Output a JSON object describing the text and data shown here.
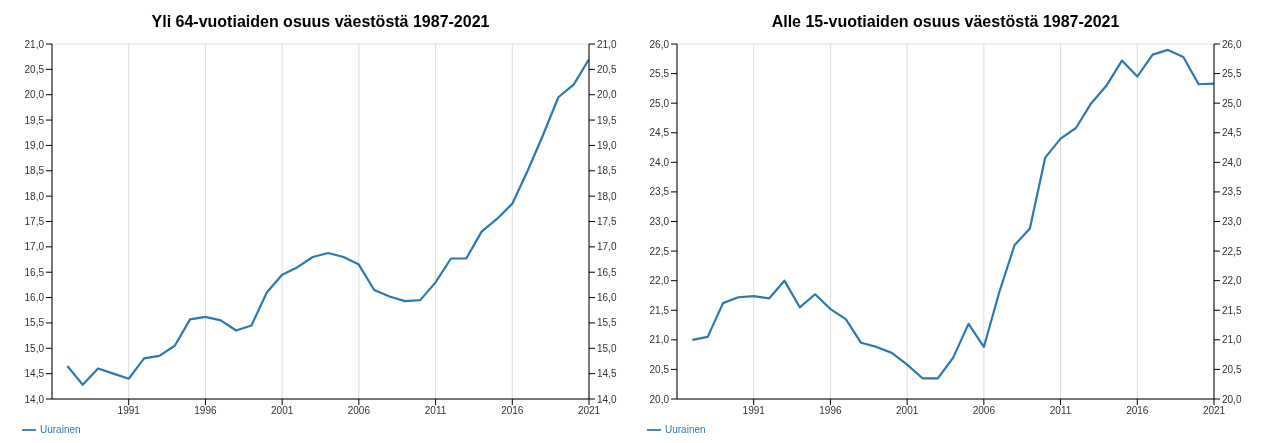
{
  "chart_data": [
    {
      "type": "line",
      "title": "Yli 64-vuotiaiden osuus väestöstä 1987-2021",
      "x": [
        1987,
        1988,
        1989,
        1990,
        1991,
        1992,
        1993,
        1994,
        1995,
        1996,
        1997,
        1998,
        1999,
        2000,
        2001,
        2002,
        2003,
        2004,
        2005,
        2006,
        2007,
        2008,
        2009,
        2010,
        2011,
        2012,
        2013,
        2014,
        2015,
        2016,
        2017,
        2018,
        2019,
        2020,
        2021
      ],
      "series": [
        {
          "name": "Uurainen",
          "color": "#2a7ab0",
          "values": [
            14.65,
            14.28,
            14.6,
            14.5,
            14.4,
            14.8,
            14.85,
            15.05,
            15.57,
            15.62,
            15.55,
            15.35,
            15.45,
            16.1,
            16.45,
            16.6,
            16.8,
            16.88,
            16.8,
            16.65,
            16.15,
            16.02,
            15.93,
            15.95,
            16.3,
            16.77,
            16.77,
            17.3,
            17.55,
            17.85,
            18.5,
            19.2,
            19.95,
            20.2,
            20.7
          ]
        }
      ],
      "xlim": [
        1986,
        2021
      ],
      "xticks": [
        1991,
        1996,
        2001,
        2006,
        2011,
        2016,
        2021
      ],
      "ylim": [
        14,
        21
      ],
      "yticks": [
        {
          "value": 14,
          "label": "14,0"
        },
        {
          "value": 14.5,
          "label": "14,5"
        },
        {
          "value": 15,
          "label": "15,0"
        },
        {
          "value": 15.5,
          "label": "15,5"
        },
        {
          "value": 16,
          "label": "16,0"
        },
        {
          "value": 16.5,
          "label": "16,5"
        },
        {
          "value": 17,
          "label": "17,0"
        },
        {
          "value": 17.5,
          "label": "17,5"
        },
        {
          "value": 18,
          "label": "18,0"
        },
        {
          "value": 18.5,
          "label": "18,5"
        },
        {
          "value": 19,
          "label": "19,0"
        },
        {
          "value": 19.5,
          "label": "19,5"
        },
        {
          "value": 20,
          "label": "20,0"
        },
        {
          "value": 20.5,
          "label": "20,5"
        },
        {
          "value": 21,
          "label": "21,0"
        }
      ],
      "y2lim": [
        14,
        21
      ],
      "y2ticks": [
        {
          "value": 14,
          "label": "14,0"
        },
        {
          "value": 14.5,
          "label": "14,5"
        },
        {
          "value": 15,
          "label": "15,0"
        },
        {
          "value": 15.5,
          "label": "15,5"
        },
        {
          "value": 16,
          "label": "16,0"
        },
        {
          "value": 16.5,
          "label": "16,5"
        },
        {
          "value": 17,
          "label": "17,0"
        },
        {
          "value": 17.5,
          "label": "17,5"
        },
        {
          "value": 18,
          "label": "18,0"
        },
        {
          "value": 18.5,
          "label": "18,5"
        },
        {
          "value": 19,
          "label": "19,0"
        },
        {
          "value": 19.5,
          "label": "19,5"
        },
        {
          "value": 20,
          "label": "20,0"
        },
        {
          "value": 20.5,
          "label": "20,5"
        },
        {
          "value": 21,
          "label": "21,0"
        }
      ],
      "grid": true,
      "legend": "bottom left",
      "marker": "none",
      "line_style": "solid"
    },
    {
      "type": "line",
      "title": "Alle 15-vuotiaiden osuus väestöstä 1987-2021",
      "x": [
        1987,
        1988,
        1989,
        1990,
        1991,
        1992,
        1993,
        1994,
        1995,
        1996,
        1997,
        1998,
        1999,
        2000,
        2001,
        2002,
        2003,
        2004,
        2005,
        2006,
        2007,
        2008,
        2009,
        2010,
        2011,
        2012,
        2013,
        2014,
        2015,
        2016,
        2017,
        2018,
        2019,
        2020,
        2021
      ],
      "series": [
        {
          "name": "Uurainen",
          "color": "#2a7ab0",
          "values": [
            21.0,
            21.05,
            21.62,
            21.72,
            21.74,
            21.7,
            22.0,
            21.55,
            21.77,
            21.52,
            21.35,
            20.95,
            20.88,
            20.78,
            20.58,
            20.35,
            20.35,
            20.7,
            21.27,
            20.88,
            21.8,
            22.6,
            22.88,
            24.08,
            24.4,
            24.58,
            25.0,
            25.3,
            25.72,
            25.45,
            25.82,
            25.9,
            25.78,
            25.32,
            25.33
          ]
        }
      ],
      "xlim": [
        1986,
        2021
      ],
      "xticks": [
        1991,
        1996,
        2001,
        2006,
        2011,
        2016,
        2021
      ],
      "ylim": [
        20,
        26
      ],
      "yticks": [
        {
          "value": 20,
          "label": "20,0"
        },
        {
          "value": 20.5,
          "label": "20,5"
        },
        {
          "value": 21,
          "label": "21,0"
        },
        {
          "value": 21.5,
          "label": "21,5"
        },
        {
          "value": 22,
          "label": "22,0"
        },
        {
          "value": 22.5,
          "label": "22,5"
        },
        {
          "value": 23,
          "label": "23,0"
        },
        {
          "value": 23.5,
          "label": "23,5"
        },
        {
          "value": 24,
          "label": "24,0"
        },
        {
          "value": 24.5,
          "label": "24,5"
        },
        {
          "value": 25,
          "label": "25,0"
        },
        {
          "value": 25.5,
          "label": "25,5"
        },
        {
          "value": 26,
          "label": "26,0"
        }
      ],
      "y2lim": [
        20,
        26
      ],
      "y2ticks": [
        {
          "value": 20,
          "label": "20,0"
        },
        {
          "value": 20.5,
          "label": "20,5"
        },
        {
          "value": 21,
          "label": "21,0"
        },
        {
          "value": 21.5,
          "label": "21,5"
        },
        {
          "value": 22,
          "label": "22,0"
        },
        {
          "value": 22.5,
          "label": "22,5"
        },
        {
          "value": 23,
          "label": "23,0"
        },
        {
          "value": 23.5,
          "label": "23,5"
        },
        {
          "value": 24,
          "label": "24,0"
        },
        {
          "value": 24.5,
          "label": "24,5"
        },
        {
          "value": 25,
          "label": "25,0"
        },
        {
          "value": 25.5,
          "label": "25,5"
        },
        {
          "value": 26,
          "label": "26,0"
        }
      ],
      "grid": true,
      "legend": "bottom left",
      "marker": "none",
      "line_style": "solid"
    }
  ]
}
